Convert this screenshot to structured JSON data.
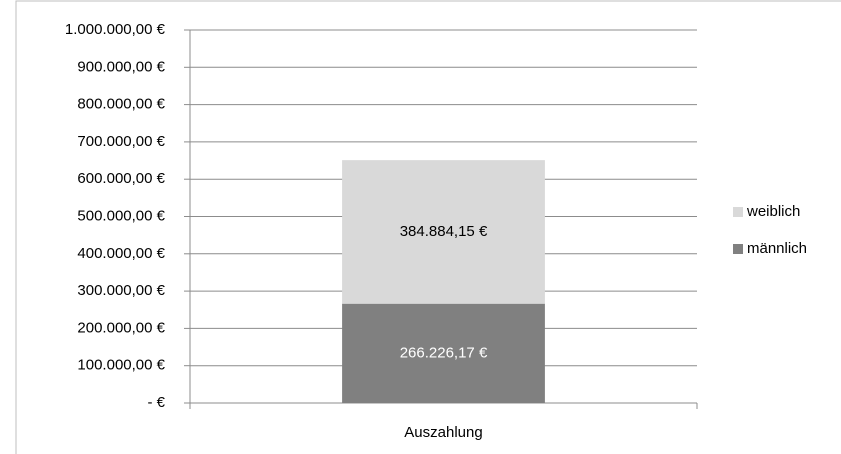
{
  "chart_data": {
    "type": "stacked_bar",
    "categories": [
      "Auszahlung"
    ],
    "series": [
      {
        "name": "männlich",
        "color": "#808080",
        "values": [
          266226.17
        ],
        "value_labels": [
          "266.226,17 €"
        ]
      },
      {
        "name": "weiblich",
        "color": "#d9d9d9",
        "values": [
          384884.15
        ],
        "value_labels": [
          "384.884,15 €"
        ]
      }
    ],
    "ylim": [
      0,
      1000000
    ],
    "yticks": [
      {
        "value": 0,
        "label": "-  €"
      },
      {
        "value": 100000,
        "label": "100.000,00 €"
      },
      {
        "value": 200000,
        "label": "200.000,00 €"
      },
      {
        "value": 300000,
        "label": "300.000,00 €"
      },
      {
        "value": 400000,
        "label": "400.000,00 €"
      },
      {
        "value": 500000,
        "label": "500.000,00 €"
      },
      {
        "value": 600000,
        "label": "600.000,00 €"
      },
      {
        "value": 700000,
        "label": "700.000,00 €"
      },
      {
        "value": 800000,
        "label": "800.000,00 €"
      },
      {
        "value": 900000,
        "label": "900.000,00 €"
      },
      {
        "value": 1000000,
        "label": "1.000.000,00 €"
      }
    ],
    "grid": true,
    "legend": "right"
  }
}
